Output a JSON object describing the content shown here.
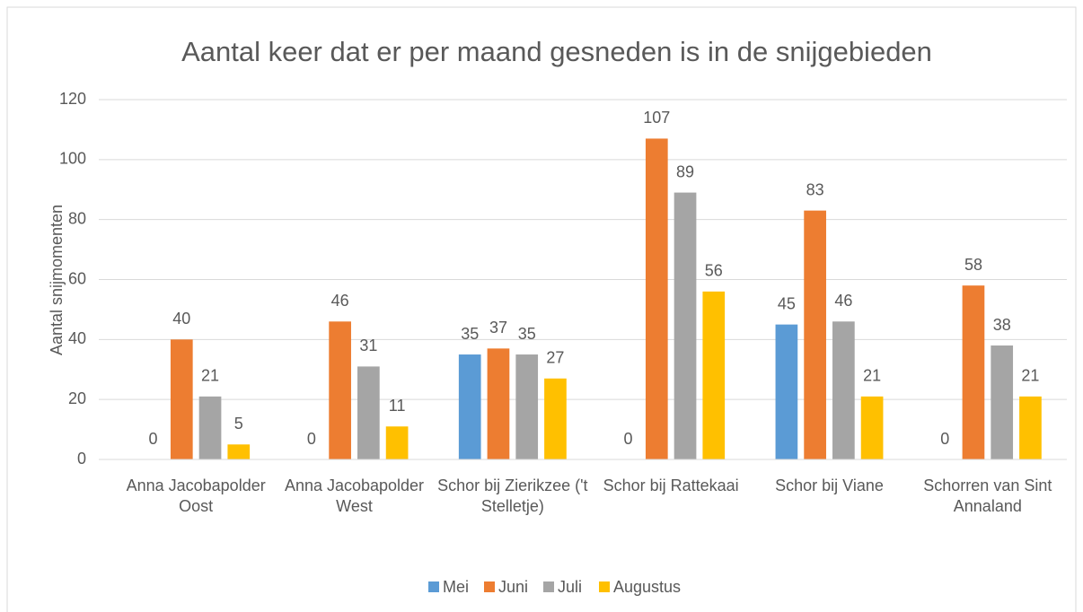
{
  "chart_data": {
    "type": "bar",
    "title": "Aantal keer dat er per maand gesneden is in de snijgebieden",
    "y_label": "Aantal snijmomenten",
    "categories": [
      "Anna Jacobapolder Oost",
      "Anna Jacobapolder West",
      "Schor bij Zierikzee ('t Stelletje)",
      "Schor bij Rattekaai",
      "Schor bij Viane",
      "Schorren van Sint Annaland"
    ],
    "series": [
      {
        "name": "Mei",
        "color": "#5b9bd5",
        "values": [
          0,
          0,
          35,
          0,
          45,
          0
        ]
      },
      {
        "name": "Juni",
        "color": "#ed7d31",
        "values": [
          40,
          46,
          37,
          107,
          83,
          58
        ]
      },
      {
        "name": "Juli",
        "color": "#a5a5a5",
        "values": [
          21,
          31,
          35,
          89,
          46,
          38
        ]
      },
      {
        "name": "Augustus",
        "color": "#ffc000",
        "values": [
          5,
          11,
          27,
          56,
          21,
          21
        ]
      }
    ],
    "ylim": [
      0,
      120
    ],
    "yticks": [
      0,
      20,
      40,
      60,
      80,
      100,
      120
    ],
    "grid": true,
    "legend": "bottom"
  }
}
